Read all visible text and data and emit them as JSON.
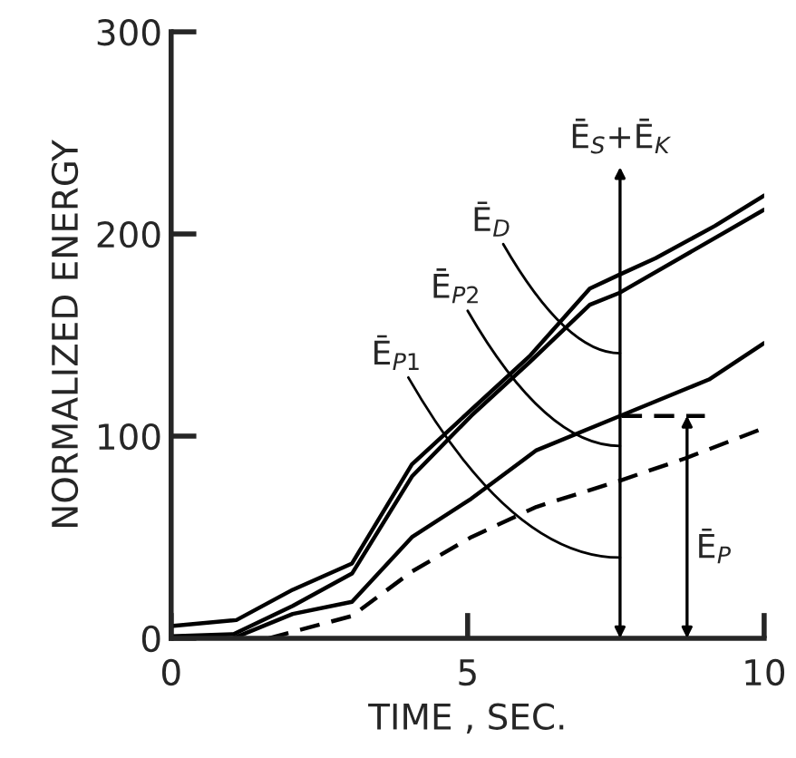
{
  "chart_data": {
    "type": "line",
    "xlabel": "TIME , SEC.",
    "ylabel": "NORMALIZED ENERGY",
    "xlim": [
      0,
      10
    ],
    "ylim": [
      0,
      300
    ],
    "xticks": [
      0,
      5,
      10
    ],
    "yticks": [
      0,
      100,
      200,
      300
    ],
    "grid": false,
    "legend": false,
    "marker": "none",
    "series": [
      {
        "color": "#000000",
        "line_style": "solid",
        "x": [
          0,
          1.1,
          2.05,
          3.05,
          4.06,
          5.06,
          6.06,
          7.06,
          7.57,
          8.17,
          9.17,
          10
        ],
        "values": [
          6,
          9,
          24,
          37,
          86,
          113,
          140,
          173,
          180,
          188,
          204,
          219
        ]
      },
      {
        "color": "#000000",
        "line_style": "solid",
        "x": [
          0,
          1.05,
          2.05,
          3.05,
          4.06,
          5.06,
          6.06,
          7.06,
          7.57,
          10
        ],
        "values": [
          1,
          2,
          16,
          32,
          80,
          110,
          137,
          165,
          171,
          212
        ]
      },
      {
        "color": "#000000",
        "line_style": "solid",
        "x": [
          1.05,
          2.05,
          3.05,
          4.06,
          5.06,
          6.16,
          7.57,
          9.07,
          10
        ],
        "values": [
          0,
          12,
          18,
          50,
          69,
          93,
          110,
          128,
          146
        ]
      },
      {
        "color": "#000000",
        "line_style": "dashed",
        "x": [
          1.65,
          3.05,
          4.06,
          5.06,
          6.16,
          7.57,
          8.67,
          10
        ],
        "values": [
          0,
          11,
          33,
          50,
          65,
          78,
          89,
          104
        ]
      },
      {
        "color": "#000000",
        "line_style": "dashed",
        "x": [
          7.6,
          9.0
        ],
        "values": [
          110,
          110
        ]
      }
    ],
    "annotations": [
      "Ē$_{S}$+Ē$_{K}$",
      "Ē$_{D}$",
      "Ē$_{P2}$",
      "Ē$_{P1}$",
      "Ē$_{P}$"
    ]
  }
}
